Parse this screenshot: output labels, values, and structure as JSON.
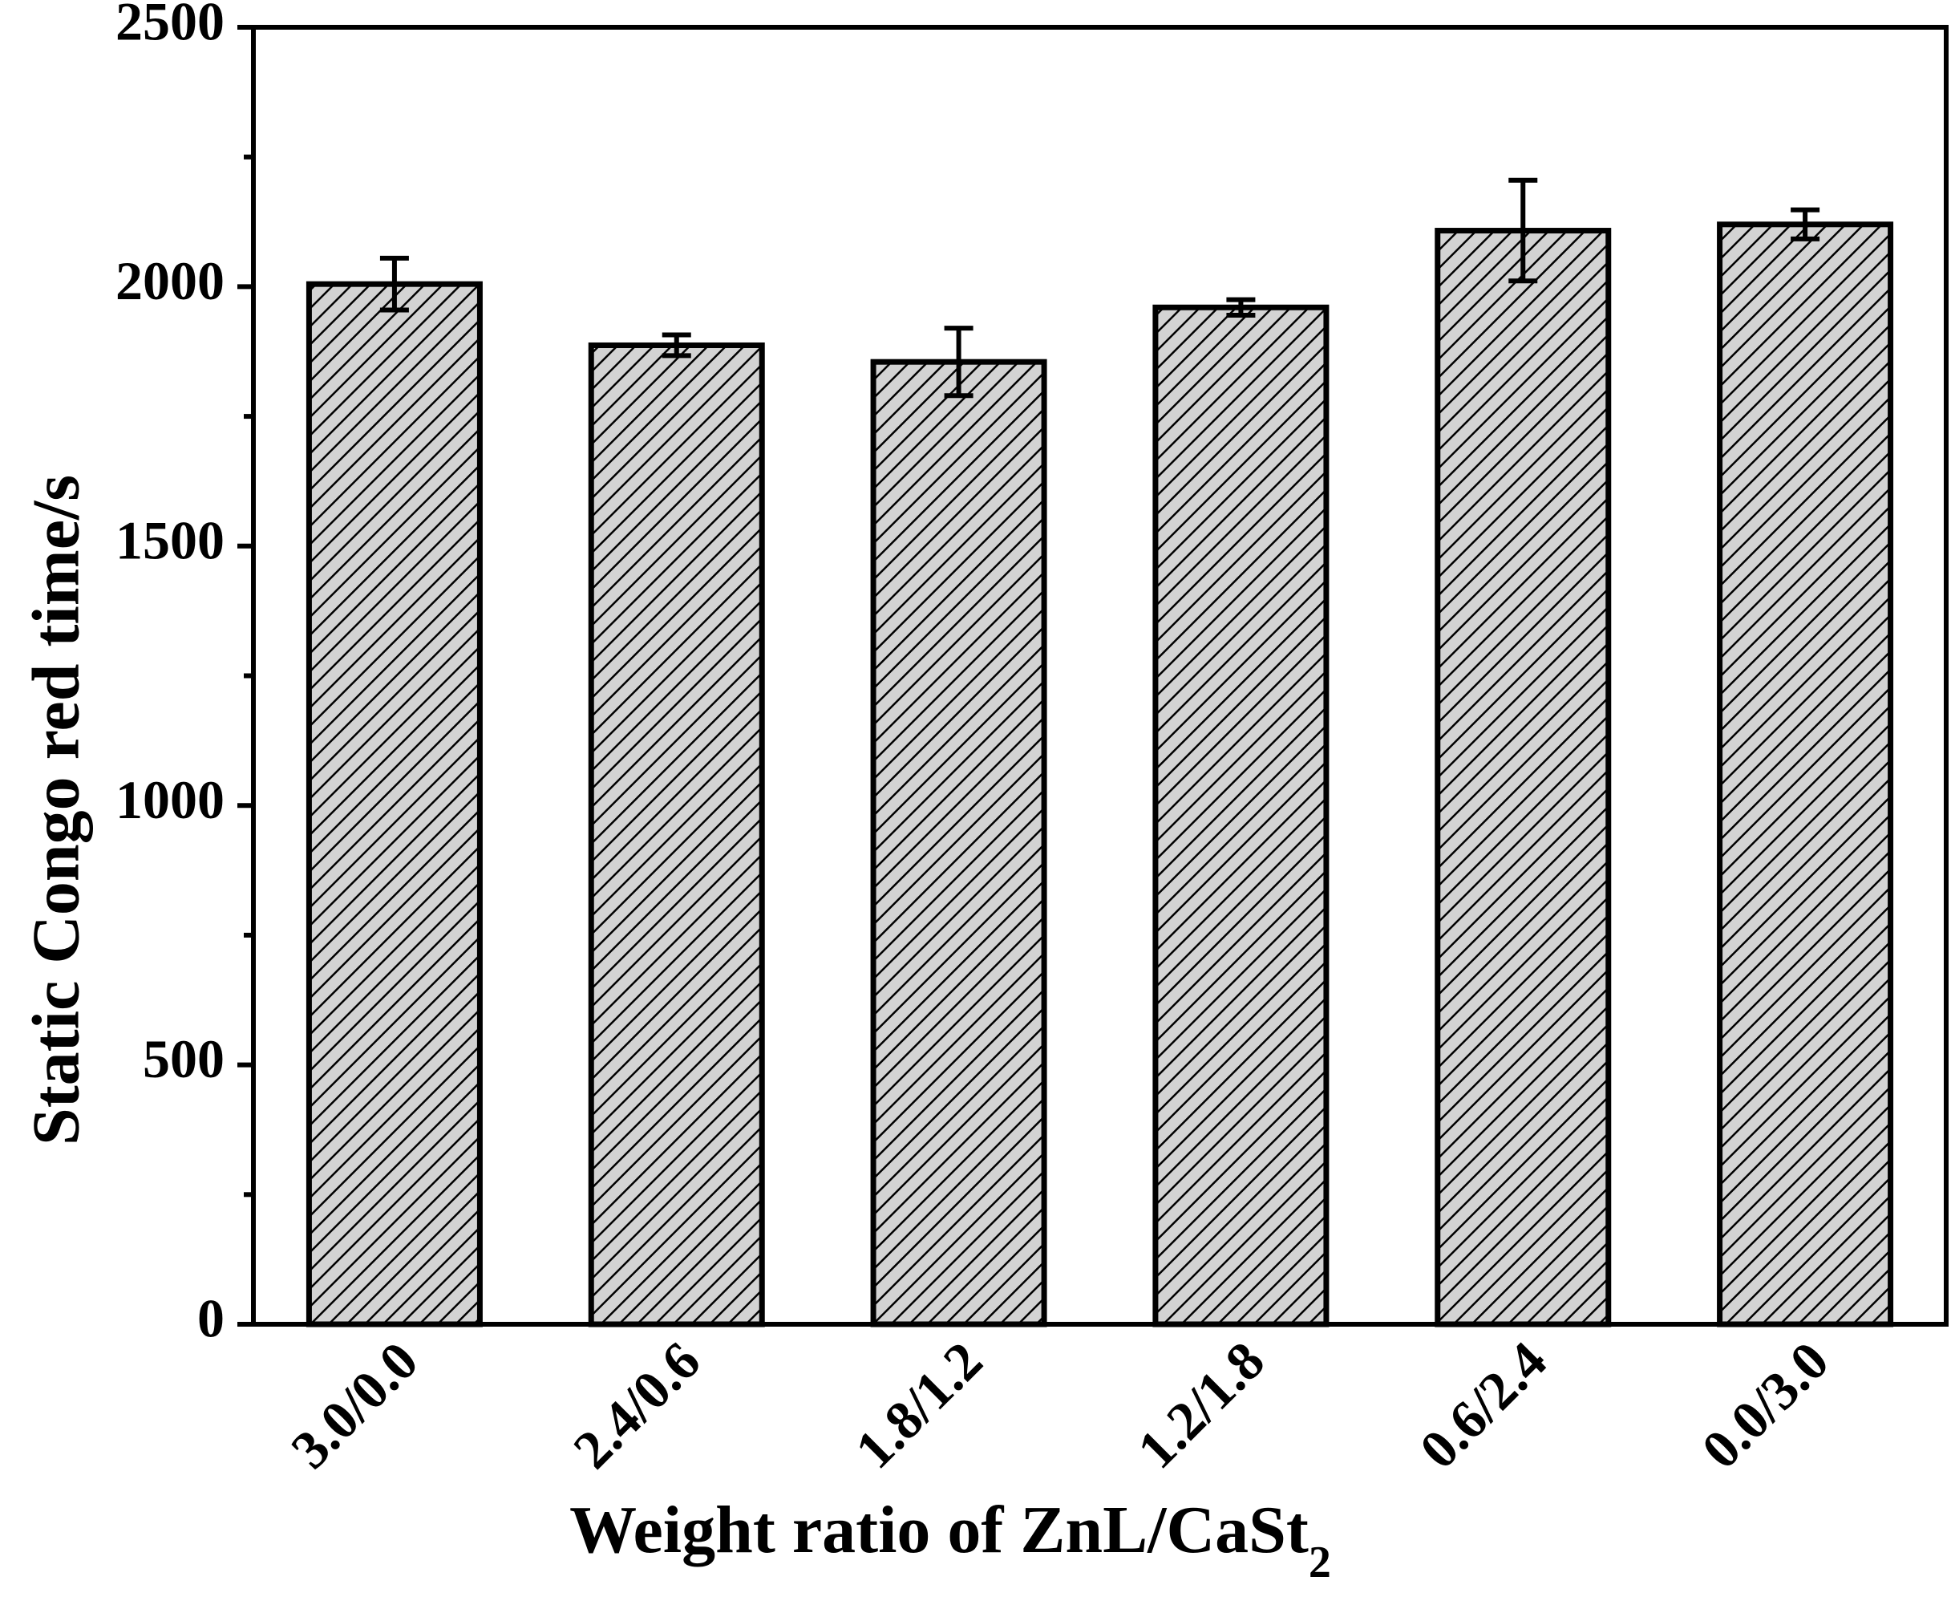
{
  "chart_data": {
    "type": "bar",
    "title": "",
    "xlabel_main": "Weight ratio of ZnL/CaSt",
    "xlabel_sub": "2",
    "ylabel": "Static Congo red time/s",
    "categories": [
      "3.0/0.0",
      "2.4/0.6",
      "1.8/1.2",
      "1.2/1.8",
      "0.6/2.4",
      "0.0/3.0"
    ],
    "values": [
      2005,
      1887,
      1855,
      1960,
      2108,
      2120
    ],
    "errors": [
      50,
      20,
      65,
      15,
      97,
      28
    ],
    "ylim": [
      0,
      2500
    ],
    "yticks": [
      0,
      500,
      1000,
      1500,
      2000,
      2500
    ],
    "yminor_step": 250,
    "grid": false,
    "bar_fill": "#d3d3d3",
    "hatch": "diagonal",
    "edge_color": "#000000"
  }
}
